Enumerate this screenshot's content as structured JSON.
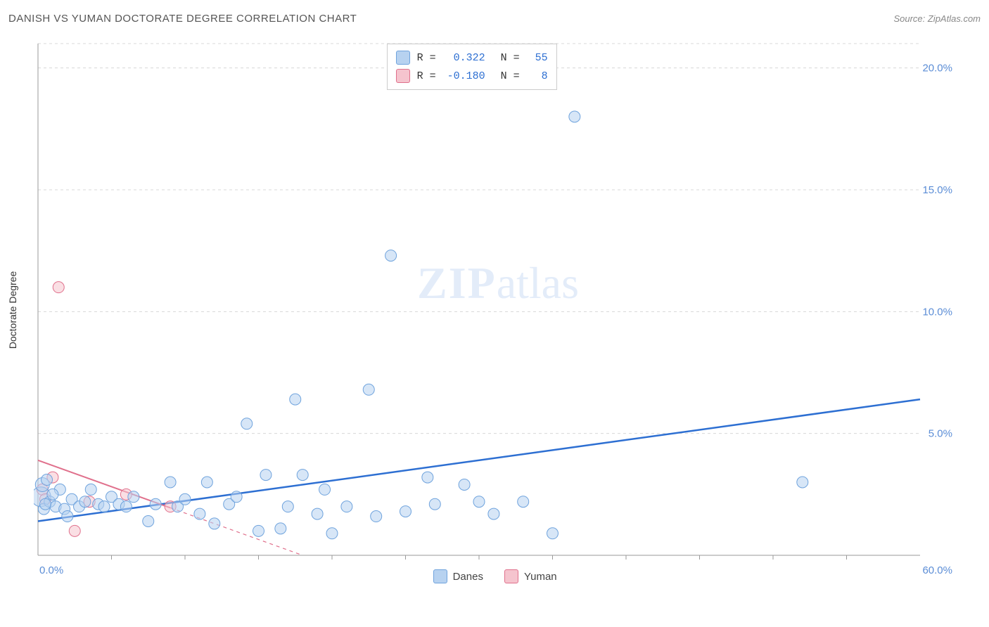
{
  "title": "DANISH VS YUMAN DOCTORATE DEGREE CORRELATION CHART",
  "source": "Source: ZipAtlas.com",
  "ylabel": "Doctorate Degree",
  "watermark_a": "ZIP",
  "watermark_b": "atlas",
  "chart": {
    "type": "scatter-with-regression",
    "xlim": [
      0,
      60
    ],
    "ylim": [
      0,
      21
    ],
    "x_tick_major": [
      0,
      60
    ],
    "x_tick_minor_step": 5,
    "y_tick_major": [
      5,
      10,
      15,
      20
    ],
    "x_tick_labels": {
      "0": "0.0%",
      "60": "60.0%"
    },
    "y_tick_labels": {
      "5": "5.0%",
      "10": "10.0%",
      "15": "15.0%",
      "20": "20.0%"
    },
    "grid_color": "#d8d8d8",
    "grid_dash": "4 4",
    "axis_label_color": "#5b8dd6",
    "background": "#ffffff",
    "plot_border_color": "#e0e0e0",
    "series": [
      {
        "name": "Danes",
        "fill": "#b7d2f0",
        "stroke": "#6fa3dd",
        "fill_opacity": 0.55,
        "marker_radius": 8,
        "R": "0.322",
        "N": "55",
        "regression": {
          "x1": 0,
          "y1": 1.4,
          "x2": 60,
          "y2": 6.4,
          "color": "#2d6fd2",
          "width": 2.5,
          "dash": null
        },
        "points": [
          {
            "x": 0.2,
            "y": 2.4,
            "r": 14
          },
          {
            "x": 0.3,
            "y": 2.9,
            "r": 10
          },
          {
            "x": 0.4,
            "y": 1.9,
            "r": 8
          },
          {
            "x": 0.6,
            "y": 3.1,
            "r": 8
          },
          {
            "x": 0.8,
            "y": 2.2,
            "r": 8
          },
          {
            "x": 1.2,
            "y": 2.0,
            "r": 8
          },
          {
            "x": 1.5,
            "y": 2.7,
            "r": 8
          },
          {
            "x": 1.8,
            "y": 1.9,
            "r": 8
          },
          {
            "x": 2.3,
            "y": 2.3,
            "r": 8
          },
          {
            "x": 2.8,
            "y": 2.0,
            "r": 8
          },
          {
            "x": 3.2,
            "y": 2.2,
            "r": 8
          },
          {
            "x": 3.6,
            "y": 2.7,
            "r": 8
          },
          {
            "x": 4.1,
            "y": 2.1,
            "r": 8
          },
          {
            "x": 4.5,
            "y": 2.0,
            "r": 8
          },
          {
            "x": 5.0,
            "y": 2.4,
            "r": 8
          },
          {
            "x": 5.5,
            "y": 2.1,
            "r": 8
          },
          {
            "x": 6.0,
            "y": 2.0,
            "r": 8
          },
          {
            "x": 6.5,
            "y": 2.4,
            "r": 8
          },
          {
            "x": 7.5,
            "y": 1.4,
            "r": 8
          },
          {
            "x": 8.0,
            "y": 2.1,
            "r": 8
          },
          {
            "x": 9.0,
            "y": 3.0,
            "r": 8
          },
          {
            "x": 9.5,
            "y": 2.0,
            "r": 8
          },
          {
            "x": 10.0,
            "y": 2.3,
            "r": 8
          },
          {
            "x": 11.0,
            "y": 1.7,
            "r": 8
          },
          {
            "x": 11.5,
            "y": 3.0,
            "r": 8
          },
          {
            "x": 12.0,
            "y": 1.3,
            "r": 8
          },
          {
            "x": 13.0,
            "y": 2.1,
            "r": 8
          },
          {
            "x": 13.5,
            "y": 2.4,
            "r": 8
          },
          {
            "x": 14.2,
            "y": 5.4,
            "r": 8
          },
          {
            "x": 15.0,
            "y": 1.0,
            "r": 8
          },
          {
            "x": 15.5,
            "y": 3.3,
            "r": 8
          },
          {
            "x": 16.5,
            "y": 1.1,
            "r": 8
          },
          {
            "x": 17.0,
            "y": 2.0,
            "r": 8
          },
          {
            "x": 17.5,
            "y": 6.4,
            "r": 8
          },
          {
            "x": 18.0,
            "y": 3.3,
            "r": 8
          },
          {
            "x": 19.0,
            "y": 1.7,
            "r": 8
          },
          {
            "x": 19.5,
            "y": 2.7,
            "r": 8
          },
          {
            "x": 20.0,
            "y": 0.9,
            "r": 8
          },
          {
            "x": 21.0,
            "y": 2.0,
            "r": 8
          },
          {
            "x": 22.5,
            "y": 6.8,
            "r": 8
          },
          {
            "x": 23.0,
            "y": 1.6,
            "r": 8
          },
          {
            "x": 24.0,
            "y": 12.3,
            "r": 8
          },
          {
            "x": 25.0,
            "y": 1.8,
            "r": 8
          },
          {
            "x": 26.5,
            "y": 3.2,
            "r": 8
          },
          {
            "x": 27.0,
            "y": 2.1,
            "r": 8
          },
          {
            "x": 29.0,
            "y": 2.9,
            "r": 8
          },
          {
            "x": 30.0,
            "y": 2.2,
            "r": 8
          },
          {
            "x": 31.0,
            "y": 1.7,
            "r": 8
          },
          {
            "x": 33.0,
            "y": 2.2,
            "r": 8
          },
          {
            "x": 35.0,
            "y": 0.9,
            "r": 8
          },
          {
            "x": 36.5,
            "y": 18.0,
            "r": 8
          },
          {
            "x": 52.0,
            "y": 3.0,
            "r": 8
          },
          {
            "x": 1.0,
            "y": 2.5,
            "r": 8
          },
          {
            "x": 2.0,
            "y": 1.6,
            "r": 8
          },
          {
            "x": 0.5,
            "y": 2.1,
            "r": 8
          }
        ]
      },
      {
        "name": "Yuman",
        "fill": "#f5c4ce",
        "stroke": "#e0708c",
        "fill_opacity": 0.55,
        "marker_radius": 8,
        "R": "-0.180",
        "N": "8",
        "regression": {
          "x1": 0,
          "y1": 3.9,
          "x2": 18,
          "y2": 0,
          "color": "#e0708c",
          "width": 2,
          "dash": "5 5",
          "solid_until_x": 9
        },
        "points": [
          {
            "x": 0.3,
            "y": 2.7,
            "r": 8
          },
          {
            "x": 0.5,
            "y": 2.3,
            "r": 8
          },
          {
            "x": 1.0,
            "y": 3.2,
            "r": 8
          },
          {
            "x": 1.4,
            "y": 11.0,
            "r": 8
          },
          {
            "x": 2.5,
            "y": 1.0,
            "r": 8
          },
          {
            "x": 3.5,
            "y": 2.2,
            "r": 8
          },
          {
            "x": 6.0,
            "y": 2.5,
            "r": 8
          },
          {
            "x": 9.0,
            "y": 2.0,
            "r": 8
          }
        ]
      }
    ]
  },
  "legend_top": {
    "rows": [
      {
        "swatch_fill": "#b7d2f0",
        "swatch_stroke": "#6fa3dd",
        "r_label": "R =",
        "r_val": "0.322",
        "n_label": "N =",
        "n_val": "55",
        "val_color": "#2d6fd2"
      },
      {
        "swatch_fill": "#f5c4ce",
        "swatch_stroke": "#e0708c",
        "r_label": "R =",
        "r_val": "-0.180",
        "n_label": "N =",
        "n_val": "8",
        "val_color": "#2d6fd2"
      }
    ]
  },
  "legend_bottom": [
    {
      "swatch_fill": "#b7d2f0",
      "swatch_stroke": "#6fa3dd",
      "label": "Danes"
    },
    {
      "swatch_fill": "#f5c4ce",
      "swatch_stroke": "#e0708c",
      "label": "Yuman"
    }
  ]
}
